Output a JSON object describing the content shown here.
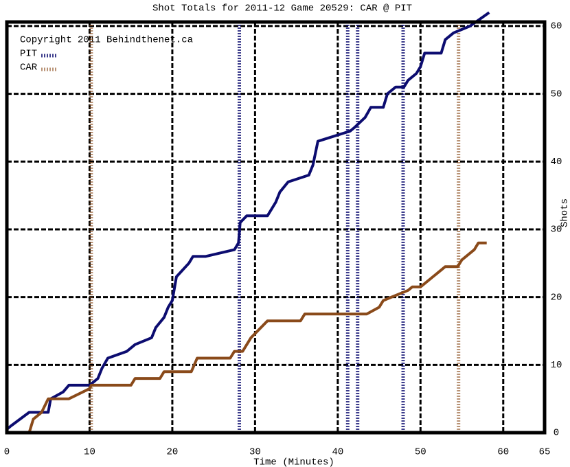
{
  "chart_data": {
    "type": "line",
    "title": "Shot Totals for 2011-12 Game 20529: CAR @ PIT",
    "copyright": "Copyright 2011 Behindthenet.ca",
    "xlabel": "Time (Minutes)",
    "ylabel": "Shots",
    "xlim": [
      0,
      65
    ],
    "xticks": [
      0,
      10,
      20,
      30,
      40,
      50,
      60,
      65
    ],
    "ylim": [
      0,
      60.6
    ],
    "yticks": [
      0,
      10,
      20,
      30,
      40,
      50,
      60
    ],
    "grid": true,
    "legend": "upper left",
    "series": [
      {
        "name": "PIT",
        "color": "#0c0c70",
        "x": [
          0,
          0.5,
          2.7,
          5,
          5.3,
          6.8,
          7.5,
          10,
          11,
          11.5,
          12.2,
          14.5,
          15.5,
          17.5,
          18,
          19,
          19.5,
          20,
          20.5,
          22,
          22.5,
          24,
          27.5,
          28,
          28.2,
          29,
          31.5,
          32.5,
          33,
          34,
          36.5,
          37,
          37.6,
          41.5,
          42,
          43.3,
          44,
          45.5,
          46,
          47,
          48,
          48.5,
          49.5,
          50,
          50.5,
          52.5,
          53,
          54,
          55,
          56,
          58.3
        ],
        "values": [
          0.5,
          1,
          3,
          3,
          5,
          6,
          7,
          7,
          8,
          9.5,
          11,
          12,
          13,
          14,
          15.5,
          17,
          18.5,
          19.5,
          23,
          25,
          26,
          26,
          27,
          28,
          31,
          32,
          32,
          34,
          35.5,
          37,
          38,
          39.5,
          43,
          44.5,
          45,
          46.5,
          48,
          48,
          50,
          51,
          51,
          52,
          53,
          54,
          56,
          56,
          58,
          59,
          59.5,
          60,
          62
        ],
        "goals": [
          28.1,
          41.2,
          42.4,
          47.9
        ]
      },
      {
        "name": "CAR",
        "color": "#8a4a1a",
        "x": [
          0,
          2.7,
          3.2,
          4.2,
          5,
          7.5,
          10,
          10.2,
          15,
          15.5,
          18.5,
          19,
          22.3,
          23,
          27,
          27.5,
          28.5,
          29.5,
          31.5,
          35.5,
          36,
          43.5,
          45,
          45.5,
          46.5,
          48.5,
          49,
          50,
          51.5,
          52.5,
          53,
          54.5,
          55,
          56.5,
          57,
          58
        ],
        "values": [
          0,
          0,
          2,
          3,
          5,
          5,
          6.5,
          7,
          7,
          8,
          8,
          9,
          9,
          11,
          11,
          12,
          12,
          14,
          16.5,
          16.5,
          17.5,
          17.5,
          18.5,
          19.5,
          20,
          21,
          21.5,
          21.5,
          23,
          24,
          24.5,
          24.5,
          25.5,
          27,
          28,
          28
        ],
        "goals": [
          10.2,
          54.6
        ]
      }
    ]
  }
}
